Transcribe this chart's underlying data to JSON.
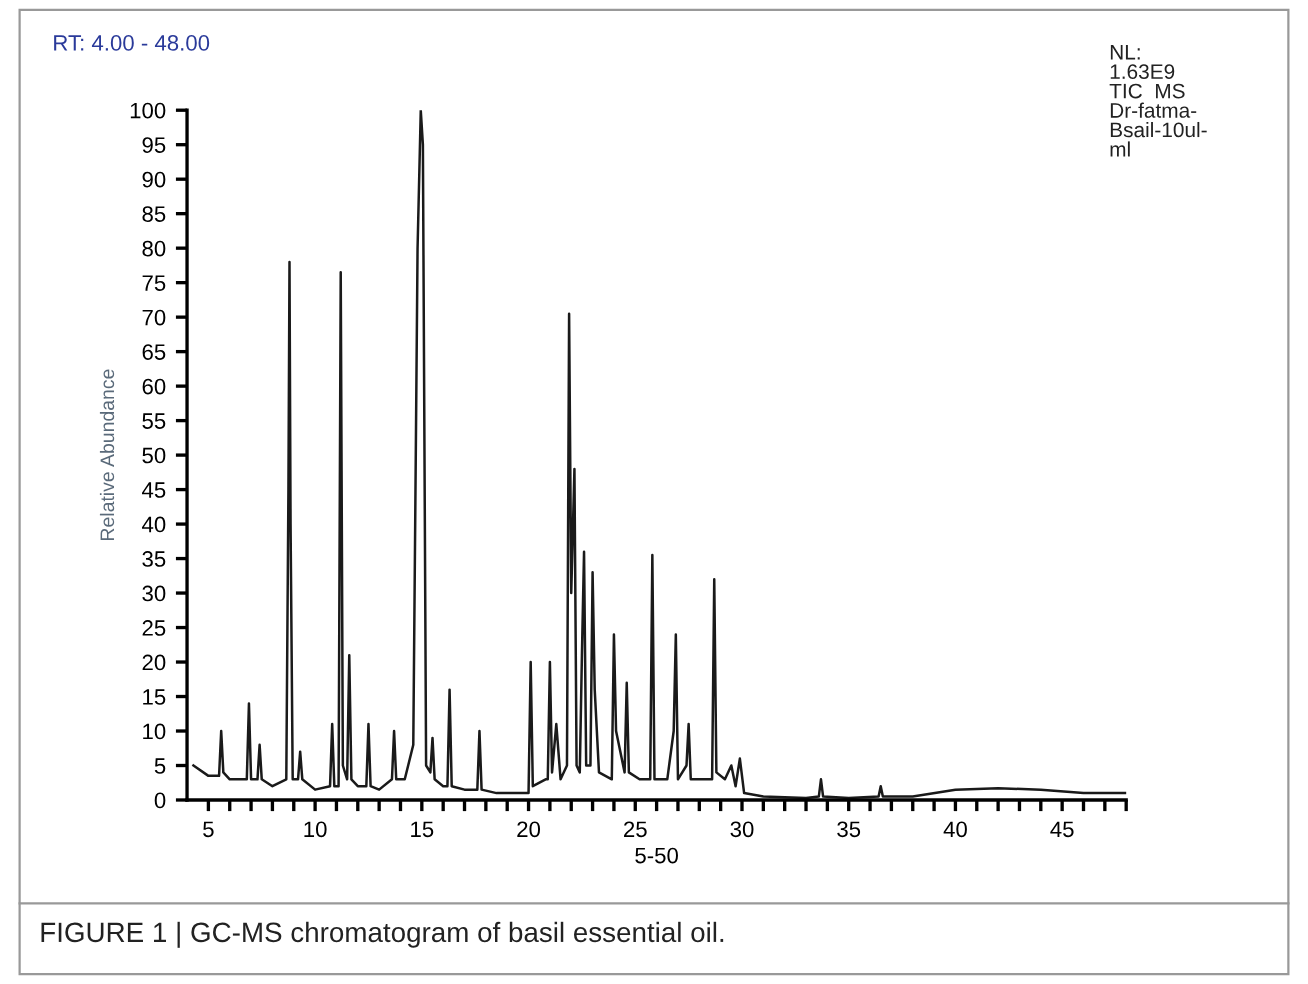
{
  "chart_data": {
    "type": "line",
    "xlabel": "5-50",
    "ylabel": "Relative Abundance",
    "annotations": [
      "RT: 4.00 - 48.00",
      "NL:\n1.63E9\nTIC  MS\nDr-fatma-\nBsail-10ul-\nml",
      "FIGURE 1 | GC-MS chromatogram of basil essential oil."
    ],
    "series": [
      {
        "color": "#1a1a1a",
        "x": [
          4.3,
          5.0,
          5.5,
          5.6,
          5.7,
          6.0,
          6.8,
          6.9,
          7.0,
          7.3,
          7.4,
          7.5,
          8.0,
          8.65,
          8.75,
          8.8,
          8.85,
          8.95,
          9.2,
          9.3,
          9.4,
          10.0,
          10.7,
          10.8,
          10.9,
          11.1,
          11.2,
          11.3,
          11.5,
          11.6,
          11.7,
          12.0,
          12.4,
          12.5,
          12.6,
          13.0,
          13.6,
          13.7,
          13.8,
          14.2,
          14.6,
          14.8,
          14.95,
          15.05,
          15.2,
          15.4,
          15.5,
          15.6,
          16.0,
          16.2,
          16.3,
          16.4,
          17.0,
          17.6,
          17.7,
          17.8,
          18.5,
          19.5,
          20.0,
          20.1,
          20.2,
          20.8,
          20.9,
          21.0,
          21.1,
          21.3,
          21.5,
          21.8,
          21.9,
          22.0,
          22.15,
          22.25,
          22.4,
          22.5,
          22.6,
          22.7,
          22.9,
          23.0,
          23.1,
          23.3,
          23.9,
          24.0,
          24.1,
          24.5,
          24.6,
          24.7,
          25.2,
          25.7,
          25.8,
          25.9,
          26.5,
          26.8,
          26.9,
          27.0,
          27.4,
          27.5,
          27.6,
          28.0,
          28.6,
          28.7,
          28.8,
          29.2,
          29.5,
          29.7,
          29.9,
          30.1,
          31.0,
          33.0,
          33.6,
          33.7,
          33.8,
          35.0,
          36.4,
          36.5,
          36.6,
          38.0,
          40.0,
          42.0,
          44.0,
          46.0,
          48.0
        ],
        "values": [
          5,
          3.5,
          3.5,
          10,
          4,
          3,
          3,
          14,
          3,
          3,
          8,
          3,
          2,
          3,
          45,
          78,
          40,
          3,
          3,
          7,
          3,
          1.5,
          2,
          11,
          2,
          2,
          76.5,
          5,
          3,
          21,
          3,
          2,
          2,
          11,
          2,
          1.5,
          3,
          10,
          3,
          3,
          8,
          80,
          100,
          95,
          5,
          4,
          9,
          3,
          2,
          2,
          16,
          2,
          1.5,
          1.5,
          10,
          1.5,
          1,
          1,
          1,
          20,
          2,
          3,
          3,
          20,
          4,
          11,
          3,
          5,
          70.5,
          30,
          48,
          5,
          4,
          21,
          36,
          5,
          5,
          33,
          16,
          4,
          3,
          24,
          10,
          4,
          17,
          4,
          3,
          3,
          35.5,
          3,
          3,
          10,
          24,
          3,
          5,
          11,
          3,
          3,
          3,
          32,
          4,
          3,
          5,
          2,
          6,
          1,
          0.5,
          0.3,
          0.5,
          3,
          0.5,
          0.3,
          0.5,
          2,
          0.5,
          0.5,
          1.5,
          1.7,
          1.5,
          1,
          1
        ]
      }
    ],
    "xlim": [
      4,
      48
    ],
    "xticks": [
      5,
      {
        "value": 6,
        "label": null
      },
      {
        "value": 7,
        "label": null
      },
      {
        "value": 8,
        "label": null
      },
      {
        "value": 9,
        "label": null
      },
      10,
      {
        "value": 11,
        "label": null
      },
      {
        "value": 12,
        "label": null
      },
      {
        "value": 13,
        "label": null
      },
      {
        "value": 14,
        "label": null
      },
      15,
      {
        "value": 16,
        "label": null
      },
      {
        "value": 17,
        "label": null
      },
      {
        "value": 18,
        "label": null
      },
      {
        "value": 19,
        "label": null
      },
      20,
      {
        "value": 21,
        "label": null
      },
      {
        "value": 22,
        "label": null
      },
      {
        "value": 23,
        "label": null
      },
      {
        "value": 24,
        "label": null
      },
      25,
      {
        "value": 26,
        "label": null
      },
      {
        "value": 27,
        "label": null
      },
      {
        "value": 28,
        "label": null
      },
      {
        "value": 29,
        "label": null
      },
      30,
      {
        "value": 31,
        "label": null
      },
      {
        "value": 32,
        "label": null
      },
      {
        "value": 33,
        "label": null
      },
      {
        "value": 34,
        "label": null
      },
      35,
      {
        "value": 36,
        "label": null
      },
      {
        "value": 37,
        "label": null
      },
      {
        "value": 38,
        "label": null
      },
      {
        "value": 39,
        "label": null
      },
      40,
      {
        "value": 41,
        "label": null
      },
      {
        "value": 42,
        "label": null
      },
      {
        "value": 43,
        "label": null
      },
      {
        "value": 44,
        "label": null
      },
      45,
      {
        "value": 46,
        "label": null
      },
      {
        "value": 47,
        "label": null
      },
      {
        "value": 48,
        "label": null
      }
    ],
    "ylim": [
      0,
      100
    ],
    "yticks": [
      0,
      5,
      10,
      15,
      20,
      25,
      30,
      35,
      40,
      45,
      50,
      55,
      60,
      65,
      70,
      75,
      80,
      85,
      90,
      95,
      100
    ],
    "grid": false,
    "legend": false,
    "marker": "none",
    "line_style": "solid"
  }
}
